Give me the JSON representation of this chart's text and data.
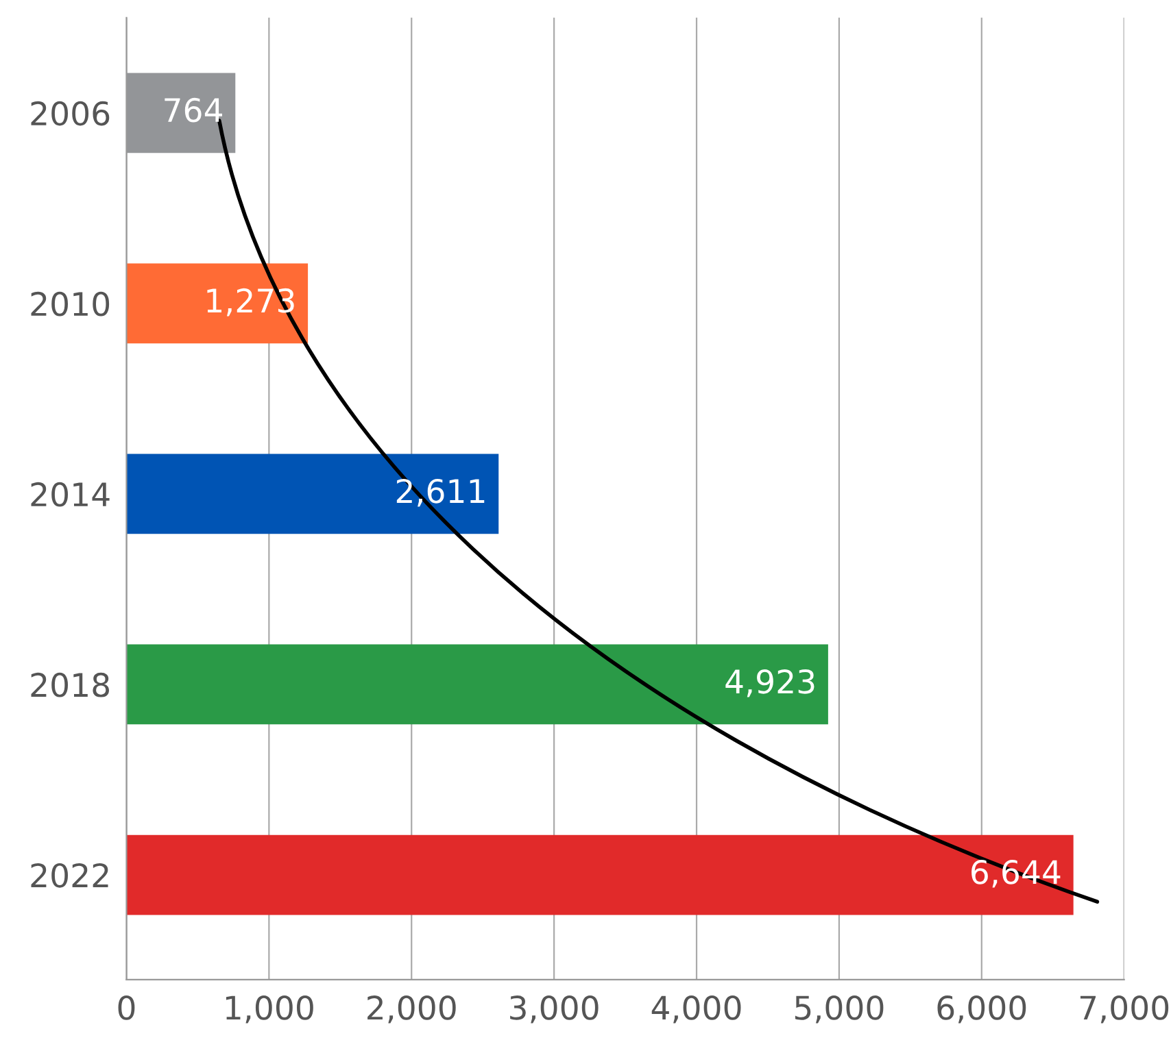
{
  "chart_data": {
    "type": "bar",
    "orientation": "horizontal",
    "categories": [
      "2006",
      "2010",
      "2014",
      "2018",
      "2022"
    ],
    "values": [
      764,
      1273,
      2611,
      4923,
      6644
    ],
    "colors": [
      "#939598",
      "#ff6b35",
      "#0054b4",
      "#2a9a47",
      "#e12a2a"
    ],
    "value_labels": [
      "764",
      "1,273",
      "2,611",
      "4,923",
      "6,644"
    ],
    "xlim": [
      0,
      7000
    ],
    "xticks": [
      0,
      {
        "value": 1000,
        "label": "1,000"
      },
      {
        "value": 2000,
        "label": "2,000"
      },
      {
        "value": 3000,
        "label": "3,000"
      },
      {
        "value": 4000,
        "label": "4,000"
      },
      {
        "value": 5000,
        "label": "5,000"
      },
      {
        "value": 6000,
        "label": "6,000"
      },
      {
        "value": 7000,
        "label": "7,000"
      }
    ],
    "grid": "x",
    "legend": false
  }
}
